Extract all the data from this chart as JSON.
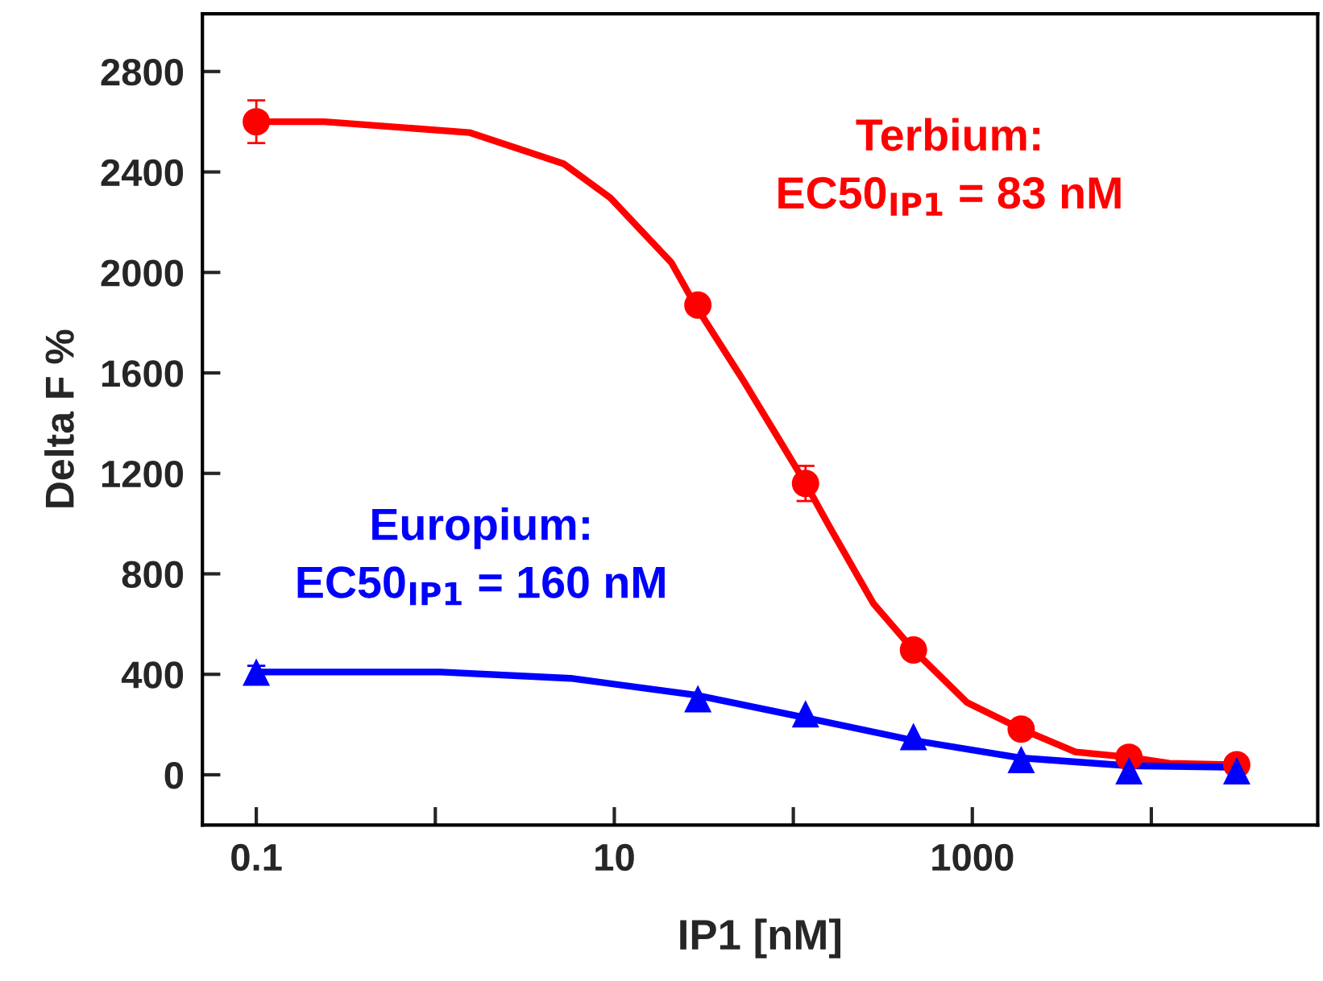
{
  "chart_data": {
    "type": "scatter",
    "xlabel": "IP1 [nM]",
    "ylabel": "Delta F %",
    "log": "x",
    "xlim": [
      0.05,
      85000
    ],
    "xticks": [
      0.1,
      {
        "value": 1,
        "label": null
      },
      10,
      {
        "value": 100,
        "label": null
      },
      1000,
      {
        "value": 10000,
        "label": null
      }
    ],
    "ylim": [
      -200,
      3030
    ],
    "yticks": [
      0,
      400,
      800,
      1200,
      1600,
      2000,
      2400,
      2800
    ],
    "grid": false,
    "legend": false,
    "series": [
      {
        "color": "#ff0000",
        "marker": "circle",
        "x": [
          0.1,
          29.3,
          117,
          469,
          1875,
          7500,
          30000
        ],
        "values": [
          2600,
          1870,
          1160,
          497,
          182,
          70,
          40
        ],
        "errors": [
          85,
          null,
          70,
          null,
          null,
          null,
          null
        ]
      },
      {
        "type": "line",
        "color": "#ff0000",
        "marker": "none",
        "x": [
          0.1,
          0.24,
          1.55,
          5.2,
          9.5,
          20.8,
          28.3,
          52.5,
          79.6,
          117,
          160,
          280,
          469,
          935,
          1875,
          3770,
          7500,
          12600,
          30000
        ],
        "values": [
          2600,
          2600,
          2557,
          2433,
          2297,
          2040,
          1870,
          1570,
          1358,
          1160,
          985,
          682,
          497,
          288,
          182,
          91,
          70,
          46,
          40
        ]
      },
      {
        "color": "#0000ff",
        "marker": "triangle",
        "x": [
          0.1,
          29.3,
          117,
          469,
          1875,
          7500,
          30000
        ],
        "values": [
          409,
          303,
          243,
          152,
          61,
          16,
          16
        ],
        "errors": [
          25,
          null,
          null,
          null,
          null,
          null,
          null
        ]
      },
      {
        "type": "line",
        "color": "#0000ff",
        "marker": "none",
        "x": [
          0.1,
          1.07,
          5.7,
          28.3,
          117,
          469,
          1875,
          7500,
          30000
        ],
        "values": [
          409,
          409,
          384,
          318,
          227,
          137,
          67,
          36,
          30
        ]
      }
    ],
    "annotations": [
      "Terbium:\nEC50$_{IP1}$ = 83 nM",
      "Europium:\nEC50$_{IP1}$ = 160 nM"
    ]
  }
}
